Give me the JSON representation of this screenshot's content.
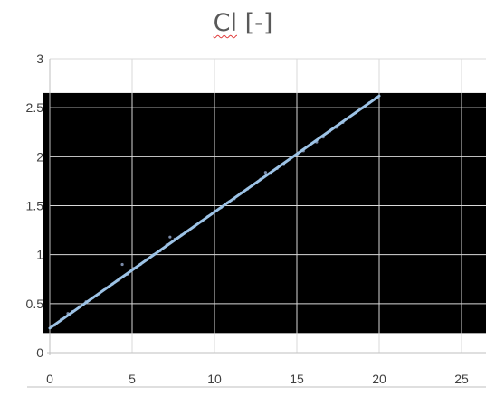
{
  "chart_data": {
    "type": "scatter",
    "title": "Cl [-]",
    "title_parts": {
      "symbol": "Cl",
      "unit": "[-]"
    },
    "xlabel": "",
    "ylabel": "",
    "xlim": [
      0,
      25
    ],
    "ylim": [
      0,
      3
    ],
    "xticks": [
      0,
      5,
      10,
      15,
      20,
      25
    ],
    "yticks": [
      0,
      0.5,
      1,
      1.5,
      2,
      2.5,
      3
    ],
    "xtick_labels": [
      "0",
      "5",
      "10",
      "15",
      "20",
      "25"
    ],
    "ytick_labels": [
      "0",
      "0.5",
      "1",
      "1.5",
      "2",
      "2.5",
      "3"
    ],
    "plot_background_band": {
      "y_from": 0.2,
      "y_to": 2.65,
      "color": "#000000"
    },
    "grid": true,
    "grid_color": "#ffffff",
    "series": [
      {
        "marker_color": "#7a8aa8",
        "trend_color": "#9dc3e6",
        "trend": {
          "x": [
            0,
            20
          ],
          "y": [
            0.25,
            2.62
          ]
        },
        "points": [
          [
            0.3,
            0.28
          ],
          [
            0.7,
            0.34
          ],
          [
            1.1,
            0.4
          ],
          [
            1.4,
            0.42
          ],
          [
            1.8,
            0.47
          ],
          [
            2.2,
            0.52
          ],
          [
            2.6,
            0.56
          ],
          [
            3.0,
            0.6
          ],
          [
            3.4,
            0.66
          ],
          [
            3.8,
            0.7
          ],
          [
            4.2,
            0.74
          ],
          [
            4.4,
            0.9
          ],
          [
            4.7,
            0.8
          ],
          [
            5.1,
            0.86
          ],
          [
            5.5,
            0.9
          ],
          [
            5.9,
            0.95
          ],
          [
            6.3,
            1.0
          ],
          [
            6.7,
            1.04
          ],
          [
            7.1,
            1.1
          ],
          [
            7.3,
            1.18
          ],
          [
            7.6,
            1.16
          ],
          [
            8.0,
            1.2
          ],
          [
            8.4,
            1.24
          ],
          [
            8.8,
            1.29
          ],
          [
            9.2,
            1.34
          ],
          [
            9.6,
            1.39
          ],
          [
            10.0,
            1.44
          ],
          [
            10.4,
            1.48
          ],
          [
            10.8,
            1.53
          ],
          [
            11.2,
            1.57
          ],
          [
            11.6,
            1.63
          ],
          [
            12.0,
            1.67
          ],
          [
            12.4,
            1.72
          ],
          [
            12.8,
            1.77
          ],
          [
            13.1,
            1.84
          ],
          [
            13.4,
            1.83
          ],
          [
            13.8,
            1.88
          ],
          [
            14.2,
            1.92
          ],
          [
            14.6,
            1.98
          ],
          [
            15.0,
            2.02
          ],
          [
            15.4,
            2.06
          ],
          [
            15.8,
            2.12
          ],
          [
            16.2,
            2.15
          ],
          [
            16.6,
            2.2
          ],
          [
            17.0,
            2.26
          ],
          [
            17.4,
            2.3
          ],
          [
            17.8,
            2.35
          ],
          [
            18.2,
            2.4
          ],
          [
            18.6,
            2.45
          ],
          [
            19.0,
            2.5
          ],
          [
            19.4,
            2.55
          ],
          [
            19.8,
            2.6
          ]
        ]
      }
    ]
  }
}
